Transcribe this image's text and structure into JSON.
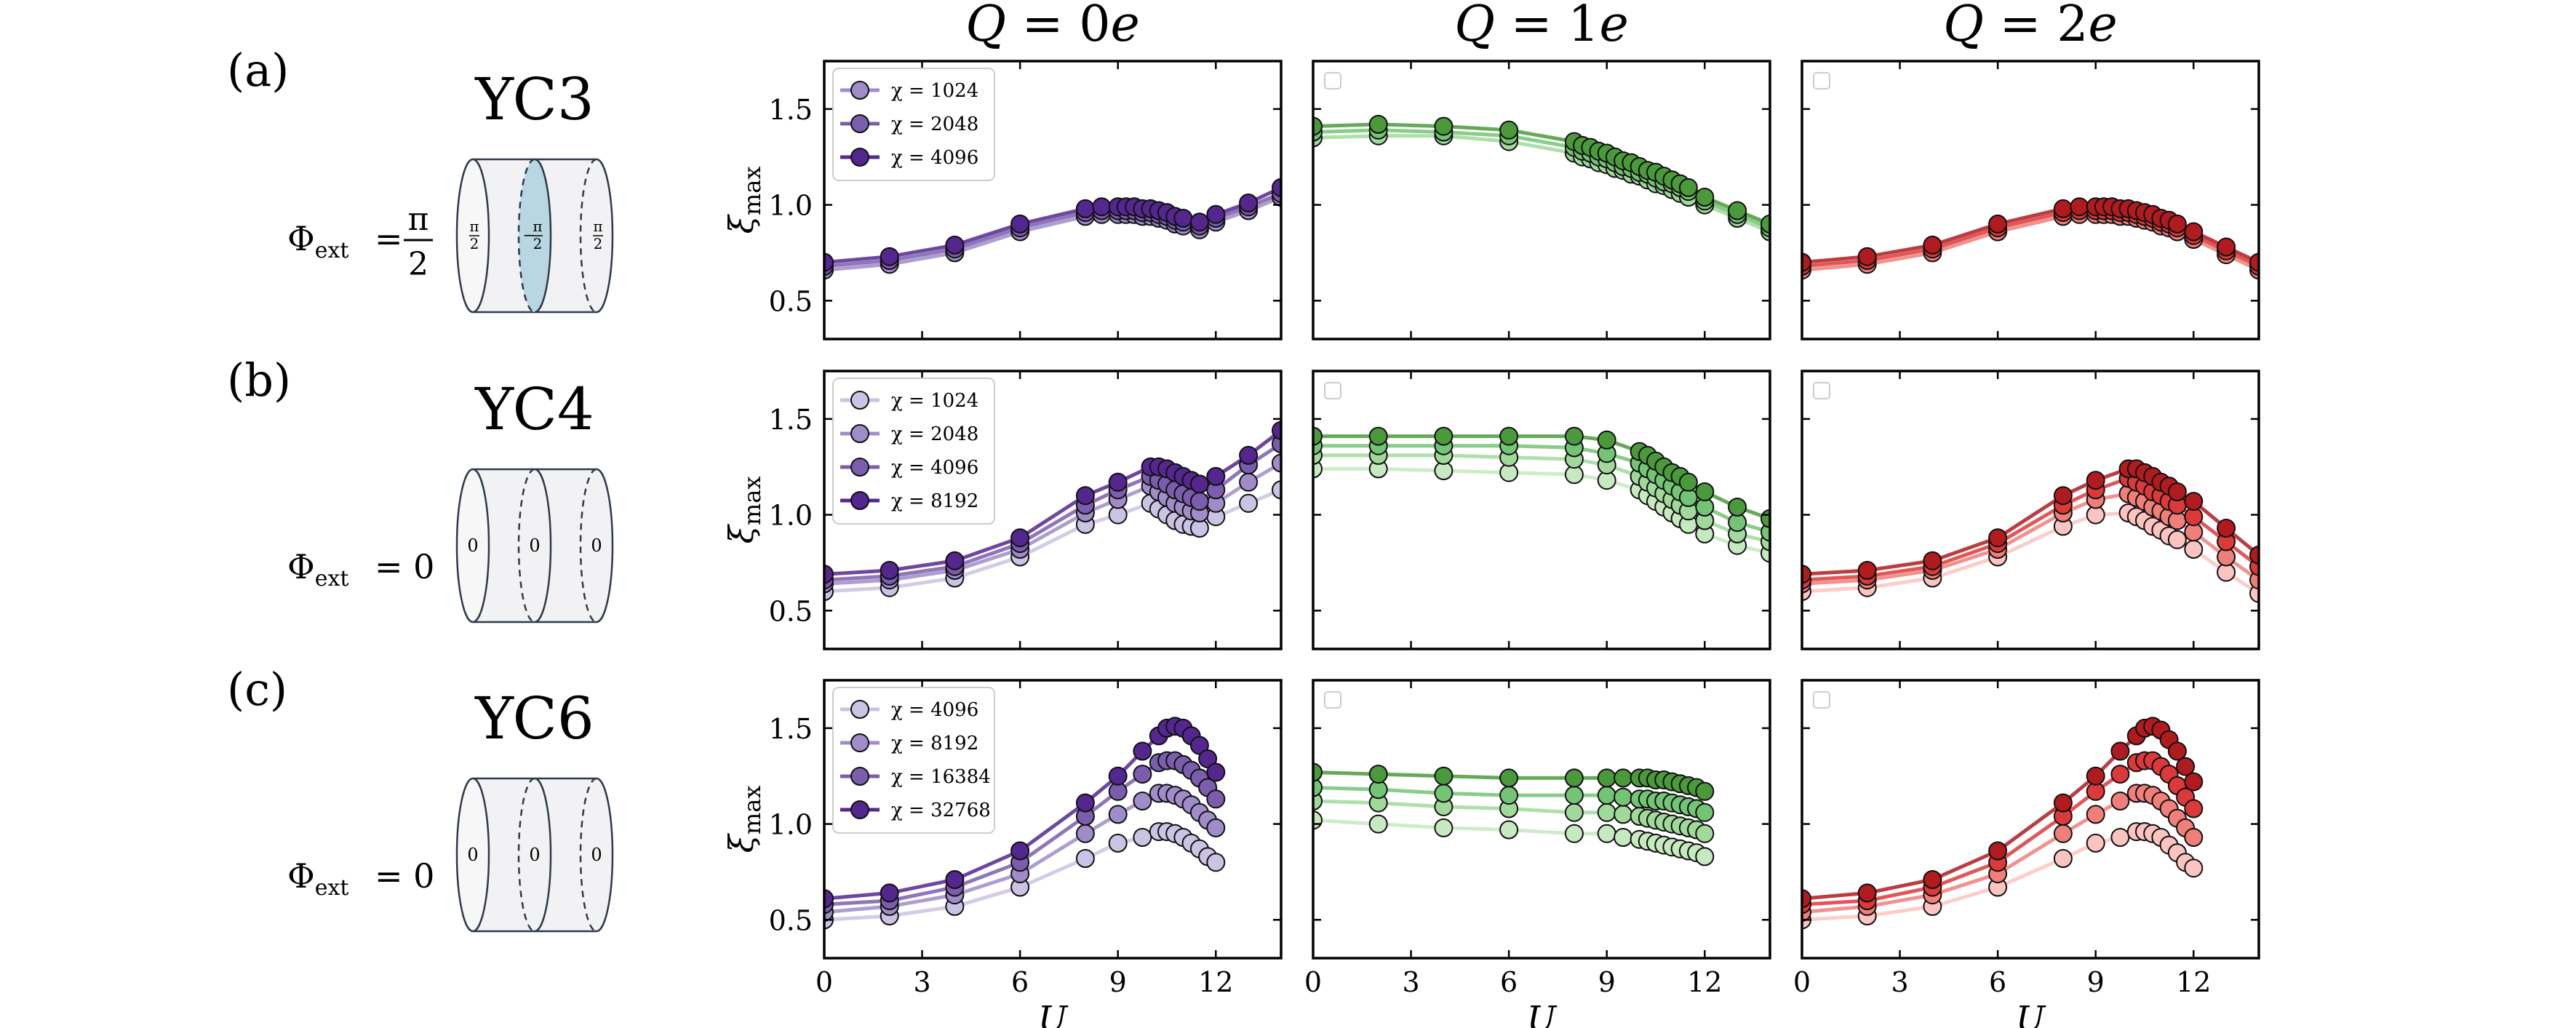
{
  "figure": {
    "row_labels": [
      "(a)",
      "(b)",
      "(c)"
    ],
    "column_titles": [
      "Q = 0e",
      "Q = 1e",
      "Q = 2e"
    ],
    "ylabel_main": "ξ",
    "ylabel_sub": "max",
    "xlabel": "U",
    "x_ticks": [
      "0",
      "3",
      "6",
      "9",
      "12"
    ],
    "y_ticks": [
      "0.5",
      "1.0",
      "1.5"
    ],
    "legend_symbol": "χ",
    "series_colors": {
      "purple": [
        "#cbc3e3",
        "#a08cc8",
        "#7b5dad",
        "#54278f"
      ],
      "green": [
        "#c7e9c0",
        "#a1d99b",
        "#74c476",
        "#4a9a3c"
      ],
      "red": [
        "#fbc4c0",
        "#f07f7a",
        "#dc3a3a",
        "#b01b20"
      ]
    }
  },
  "rows": [
    {
      "label": "(a)",
      "cylinder": {
        "name": "YC3",
        "flux_symbol": "Φ",
        "flux_sub": "ext",
        "flux_value": "π/2",
        "rings": [
          "π/2",
          "−π/2",
          "π/2"
        ],
        "shaded_ring": 1
      },
      "legend": [
        "χ = 1024",
        "χ = 2048",
        "χ = 4096"
      ]
    },
    {
      "label": "(b)",
      "cylinder": {
        "name": "YC4",
        "flux_symbol": "Φ",
        "flux_sub": "ext",
        "flux_value": "0",
        "rings": [
          "0",
          "0",
          "0"
        ],
        "shaded_ring": -1
      },
      "legend": [
        "χ = 1024",
        "χ = 2048",
        "χ = 4096",
        "χ = 8192"
      ]
    },
    {
      "label": "(c)",
      "cylinder": {
        "name": "YC6",
        "flux_symbol": "Φ",
        "flux_sub": "ext",
        "flux_value": "0",
        "rings": [
          "0",
          "0",
          "0"
        ],
        "shaded_ring": -1
      },
      "legend": [
        "χ = 4096",
        "χ = 8192",
        "χ = 16384",
        "χ = 32768"
      ]
    }
  ],
  "chart_data": [
    {
      "type": "line",
      "row": "(a)",
      "col": "Q = 0e",
      "xlim": [
        0,
        14
      ],
      "ylim": [
        0.3,
        1.75
      ],
      "ylabel": "ξmax",
      "xlabel": "U",
      "x": [
        0,
        2,
        4,
        6,
        8,
        8.5,
        9,
        9.25,
        9.5,
        9.75,
        10,
        10.25,
        10.5,
        10.75,
        11,
        11.5,
        12,
        13,
        14
      ],
      "series": [
        {
          "name": "χ = 1024",
          "values": [
            0.66,
            0.69,
            0.75,
            0.86,
            0.94,
            0.95,
            0.95,
            0.95,
            0.95,
            0.94,
            0.94,
            0.93,
            0.92,
            0.9,
            0.89,
            0.87,
            0.91,
            0.97,
            1.04
          ]
        },
        {
          "name": "χ = 2048",
          "values": [
            0.68,
            0.71,
            0.77,
            0.88,
            0.96,
            0.97,
            0.97,
            0.97,
            0.97,
            0.96,
            0.96,
            0.95,
            0.94,
            0.92,
            0.91,
            0.89,
            0.93,
            0.99,
            1.06
          ]
        },
        {
          "name": "χ = 4096",
          "values": [
            0.7,
            0.73,
            0.79,
            0.9,
            0.98,
            0.99,
            0.99,
            0.99,
            0.99,
            0.98,
            0.98,
            0.97,
            0.96,
            0.94,
            0.93,
            0.91,
            0.95,
            1.01,
            1.09
          ]
        }
      ]
    },
    {
      "type": "line",
      "row": "(a)",
      "col": "Q = 1e",
      "xlim": [
        0,
        14
      ],
      "ylim": [
        0.3,
        1.75
      ],
      "x": [
        0,
        2,
        4,
        6,
        8,
        8.25,
        8.5,
        8.75,
        9,
        9.25,
        9.5,
        9.75,
        10,
        10.25,
        10.5,
        10.75,
        11,
        11.25,
        11.5,
        12,
        13,
        14
      ],
      "series": [
        {
          "name": "χ = 1024",
          "values": [
            1.35,
            1.36,
            1.36,
            1.33,
            1.27,
            1.25,
            1.24,
            1.22,
            1.21,
            1.19,
            1.18,
            1.16,
            1.15,
            1.13,
            1.11,
            1.1,
            1.08,
            1.06,
            1.04,
            1.0,
            0.93,
            0.86
          ]
        },
        {
          "name": "χ = 2048",
          "values": [
            1.38,
            1.39,
            1.38,
            1.36,
            1.3,
            1.28,
            1.27,
            1.25,
            1.24,
            1.22,
            1.2,
            1.19,
            1.17,
            1.16,
            1.14,
            1.12,
            1.11,
            1.09,
            1.07,
            1.02,
            0.95,
            0.88
          ]
        },
        {
          "name": "χ = 4096",
          "values": [
            1.41,
            1.42,
            1.41,
            1.39,
            1.33,
            1.31,
            1.3,
            1.28,
            1.27,
            1.25,
            1.23,
            1.22,
            1.2,
            1.18,
            1.17,
            1.15,
            1.13,
            1.11,
            1.09,
            1.04,
            0.97,
            0.9
          ]
        }
      ]
    },
    {
      "type": "line",
      "row": "(a)",
      "col": "Q = 2e",
      "xlim": [
        0,
        14
      ],
      "ylim": [
        0.3,
        1.75
      ],
      "x": [
        0,
        2,
        4,
        6,
        8,
        8.5,
        9,
        9.25,
        9.5,
        9.75,
        10,
        10.25,
        10.5,
        10.75,
        11,
        11.25,
        11.5,
        12,
        13,
        14
      ],
      "series": [
        {
          "name": "χ = 1024",
          "values": [
            0.66,
            0.69,
            0.75,
            0.86,
            0.94,
            0.95,
            0.95,
            0.95,
            0.95,
            0.94,
            0.94,
            0.93,
            0.92,
            0.91,
            0.89,
            0.88,
            0.86,
            0.82,
            0.74,
            0.66
          ]
        },
        {
          "name": "χ = 2048",
          "values": [
            0.68,
            0.71,
            0.77,
            0.88,
            0.96,
            0.97,
            0.97,
            0.97,
            0.97,
            0.96,
            0.96,
            0.95,
            0.94,
            0.93,
            0.91,
            0.9,
            0.88,
            0.84,
            0.76,
            0.68
          ]
        },
        {
          "name": "χ = 4096",
          "values": [
            0.7,
            0.73,
            0.79,
            0.9,
            0.98,
            0.99,
            0.99,
            0.99,
            0.99,
            0.98,
            0.98,
            0.97,
            0.96,
            0.95,
            0.93,
            0.92,
            0.9,
            0.86,
            0.78,
            0.7
          ]
        }
      ]
    },
    {
      "type": "line",
      "row": "(b)",
      "col": "Q = 0e",
      "xlim": [
        0,
        14
      ],
      "ylim": [
        0.3,
        1.75
      ],
      "ylabel": "ξmax",
      "x": [
        0,
        2,
        4,
        6,
        8,
        9,
        10,
        10.25,
        10.5,
        10.75,
        11,
        11.25,
        11.5,
        12,
        13,
        14
      ],
      "series": [
        {
          "name": "χ = 1024",
          "values": [
            0.6,
            0.62,
            0.67,
            0.78,
            0.95,
            1.0,
            1.06,
            1.03,
            1.0,
            0.97,
            0.95,
            0.94,
            0.93,
            0.99,
            1.06,
            1.13
          ]
        },
        {
          "name": "χ = 2048",
          "values": [
            0.64,
            0.66,
            0.71,
            0.82,
            1.01,
            1.08,
            1.15,
            1.12,
            1.09,
            1.06,
            1.04,
            1.02,
            1.01,
            1.06,
            1.17,
            1.27
          ]
        },
        {
          "name": "χ = 4096",
          "values": [
            0.66,
            0.68,
            0.73,
            0.85,
            1.05,
            1.13,
            1.2,
            1.18,
            1.16,
            1.13,
            1.11,
            1.09,
            1.07,
            1.13,
            1.26,
            1.37
          ]
        },
        {
          "name": "χ = 8192",
          "values": [
            0.69,
            0.71,
            0.76,
            0.88,
            1.1,
            1.17,
            1.25,
            1.25,
            1.24,
            1.22,
            1.2,
            1.18,
            1.16,
            1.2,
            1.31,
            1.44
          ]
        }
      ]
    },
    {
      "type": "line",
      "row": "(b)",
      "col": "Q = 1e",
      "xlim": [
        0,
        14
      ],
      "ylim": [
        0.3,
        1.75
      ],
      "x": [
        0,
        2,
        4,
        6,
        8,
        9,
        10,
        10.25,
        10.5,
        10.75,
        11,
        11.25,
        11.5,
        12,
        13,
        14
      ],
      "series": [
        {
          "name": "χ = 1024",
          "values": [
            1.24,
            1.24,
            1.23,
            1.22,
            1.21,
            1.18,
            1.13,
            1.1,
            1.07,
            1.04,
            1.01,
            0.98,
            0.95,
            0.9,
            0.84,
            0.8
          ]
        },
        {
          "name": "χ = 2048",
          "values": [
            1.31,
            1.31,
            1.31,
            1.3,
            1.29,
            1.26,
            1.2,
            1.17,
            1.14,
            1.11,
            1.08,
            1.05,
            1.02,
            0.97,
            0.9,
            0.86
          ]
        },
        {
          "name": "χ = 4096",
          "values": [
            1.36,
            1.36,
            1.36,
            1.36,
            1.35,
            1.32,
            1.27,
            1.24,
            1.21,
            1.18,
            1.15,
            1.12,
            1.09,
            1.04,
            0.96,
            0.91
          ]
        },
        {
          "name": "χ = 8192",
          "values": [
            1.41,
            1.41,
            1.41,
            1.41,
            1.41,
            1.39,
            1.33,
            1.31,
            1.28,
            1.25,
            1.22,
            1.2,
            1.17,
            1.12,
            1.04,
            0.98
          ]
        }
      ]
    },
    {
      "type": "line",
      "row": "(b)",
      "col": "Q = 2e",
      "xlim": [
        0,
        14
      ],
      "ylim": [
        0.3,
        1.75
      ],
      "x": [
        0,
        2,
        4,
        6,
        8,
        9,
        10,
        10.25,
        10.5,
        10.75,
        11,
        11.25,
        11.5,
        12,
        13,
        14
      ],
      "series": [
        {
          "name": "χ = 1024",
          "values": [
            0.6,
            0.62,
            0.67,
            0.78,
            0.94,
            1.0,
            1.01,
            0.99,
            0.97,
            0.94,
            0.92,
            0.89,
            0.87,
            0.82,
            0.7,
            0.59
          ]
        },
        {
          "name": "χ = 2048",
          "values": [
            0.64,
            0.66,
            0.71,
            0.82,
            1.01,
            1.08,
            1.11,
            1.09,
            1.07,
            1.04,
            1.02,
            0.99,
            0.97,
            0.91,
            0.78,
            0.66
          ]
        },
        {
          "name": "χ = 4096",
          "values": [
            0.66,
            0.68,
            0.73,
            0.85,
            1.05,
            1.13,
            1.19,
            1.17,
            1.15,
            1.12,
            1.1,
            1.07,
            1.05,
            0.99,
            0.86,
            0.73
          ]
        },
        {
          "name": "χ = 8192",
          "values": [
            0.69,
            0.71,
            0.76,
            0.88,
            1.1,
            1.18,
            1.24,
            1.24,
            1.22,
            1.2,
            1.17,
            1.15,
            1.12,
            1.07,
            0.93,
            0.79
          ]
        }
      ]
    },
    {
      "type": "line",
      "row": "(c)",
      "col": "Q = 0e",
      "xlim": [
        0,
        14
      ],
      "ylim": [
        0.3,
        1.75
      ],
      "ylabel": "ξmax",
      "xlabel": "U",
      "x": [
        0,
        2,
        4,
        6,
        8,
        9,
        9.75,
        10.25,
        10.5,
        10.75,
        11,
        11.25,
        11.5,
        11.75,
        12
      ],
      "series": [
        {
          "name": "χ = 4096",
          "values": [
            0.5,
            0.52,
            0.57,
            0.67,
            0.82,
            0.9,
            0.93,
            0.96,
            0.96,
            0.95,
            0.93,
            0.9,
            0.87,
            0.83,
            0.8
          ]
        },
        {
          "name": "χ = 8192",
          "values": [
            0.54,
            0.57,
            0.63,
            0.74,
            0.95,
            1.05,
            1.12,
            1.16,
            1.16,
            1.15,
            1.13,
            1.1,
            1.06,
            1.02,
            0.98
          ]
        },
        {
          "name": "χ = 16384",
          "values": [
            0.58,
            0.6,
            0.67,
            0.8,
            1.04,
            1.17,
            1.26,
            1.32,
            1.33,
            1.33,
            1.31,
            1.28,
            1.24,
            1.19,
            1.13
          ]
        },
        {
          "name": "χ = 32768",
          "values": [
            0.61,
            0.64,
            0.71,
            0.86,
            1.11,
            1.25,
            1.38,
            1.46,
            1.5,
            1.51,
            1.5,
            1.46,
            1.41,
            1.34,
            1.27
          ]
        }
      ]
    },
    {
      "type": "line",
      "row": "(c)",
      "col": "Q = 1e",
      "xlim": [
        0,
        14
      ],
      "ylim": [
        0.3,
        1.75
      ],
      "xlabel": "U",
      "x": [
        0,
        2,
        4,
        6,
        8,
        9,
        9.5,
        10,
        10.25,
        10.5,
        10.75,
        11,
        11.25,
        11.5,
        11.75,
        12
      ],
      "series": [
        {
          "name": "χ = 4096",
          "values": [
            1.02,
            1.0,
            0.98,
            0.97,
            0.95,
            0.95,
            0.93,
            0.92,
            0.91,
            0.9,
            0.89,
            0.88,
            0.87,
            0.86,
            0.85,
            0.83
          ]
        },
        {
          "name": "χ = 8192",
          "values": [
            1.12,
            1.11,
            1.09,
            1.08,
            1.06,
            1.06,
            1.05,
            1.04,
            1.03,
            1.02,
            1.01,
            1.0,
            0.99,
            0.98,
            0.97,
            0.95
          ]
        },
        {
          "name": "χ = 16384",
          "values": [
            1.19,
            1.18,
            1.16,
            1.15,
            1.15,
            1.15,
            1.14,
            1.13,
            1.13,
            1.12,
            1.12,
            1.11,
            1.1,
            1.09,
            1.08,
            1.06
          ]
        },
        {
          "name": "χ = 32768",
          "values": [
            1.27,
            1.26,
            1.25,
            1.24,
            1.24,
            1.24,
            1.24,
            1.24,
            1.24,
            1.23,
            1.23,
            1.22,
            1.21,
            1.2,
            1.19,
            1.17
          ]
        }
      ]
    },
    {
      "type": "line",
      "row": "(c)",
      "col": "Q = 2e",
      "xlim": [
        0,
        14
      ],
      "ylim": [
        0.3,
        1.75
      ],
      "xlabel": "U",
      "x": [
        0,
        2,
        4,
        6,
        8,
        9,
        9.75,
        10.25,
        10.5,
        10.75,
        11,
        11.25,
        11.5,
        11.75,
        12
      ],
      "series": [
        {
          "name": "χ = 4096",
          "values": [
            0.5,
            0.52,
            0.57,
            0.67,
            0.82,
            0.9,
            0.93,
            0.96,
            0.96,
            0.95,
            0.93,
            0.89,
            0.85,
            0.8,
            0.77
          ]
        },
        {
          "name": "χ = 8192",
          "values": [
            0.54,
            0.57,
            0.63,
            0.74,
            0.95,
            1.05,
            1.12,
            1.16,
            1.16,
            1.15,
            1.12,
            1.08,
            1.03,
            0.98,
            0.93
          ]
        },
        {
          "name": "χ = 16384",
          "values": [
            0.58,
            0.6,
            0.67,
            0.8,
            1.04,
            1.17,
            1.26,
            1.32,
            1.33,
            1.33,
            1.3,
            1.26,
            1.2,
            1.14,
            1.08
          ]
        },
        {
          "name": "χ = 32768",
          "values": [
            0.61,
            0.64,
            0.71,
            0.86,
            1.11,
            1.25,
            1.38,
            1.46,
            1.5,
            1.51,
            1.49,
            1.44,
            1.38,
            1.3,
            1.22
          ]
        }
      ]
    }
  ]
}
